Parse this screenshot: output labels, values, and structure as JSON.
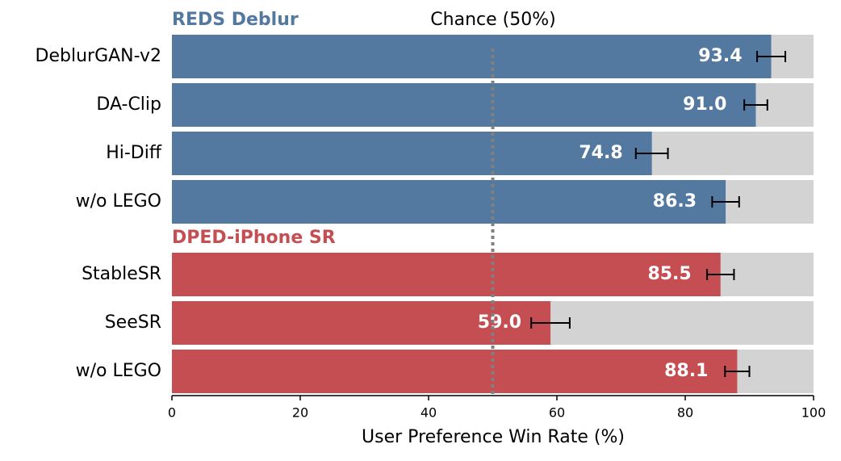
{
  "chart_data": {
    "type": "grouped_barh",
    "xlabel": "User Preference Win Rate (%)",
    "xlim": [
      0,
      100
    ],
    "xticks": [
      0,
      20,
      40,
      60,
      80,
      100
    ],
    "reference_line": 50,
    "reference_label": "Chance (50%)",
    "background_color": "#d3d3d3",
    "groups": [
      {
        "name": "REDS Deblur",
        "color": "#5479a0",
        "categories": [
          "DeblurGAN-v2",
          "DA-Clip",
          "Hi-Diff",
          "w/o LEGO"
        ],
        "values": [
          93.4,
          91.0,
          74.8,
          86.3
        ],
        "value_labels": [
          "93.4",
          "91.0",
          "74.8",
          "86.3"
        ],
        "errors": [
          2.2,
          1.8,
          2.5,
          2.1
        ]
      },
      {
        "name": "DPED-iPhone SR",
        "color": "#c44e52",
        "categories": [
          "StableSR",
          "SeeSR",
          "w/o LEGO"
        ],
        "values": [
          85.5,
          59.0,
          88.1
        ],
        "value_labels": [
          "85.5",
          "59.0",
          "88.1"
        ],
        "errors": [
          2.1,
          3.0,
          1.9
        ]
      }
    ]
  }
}
